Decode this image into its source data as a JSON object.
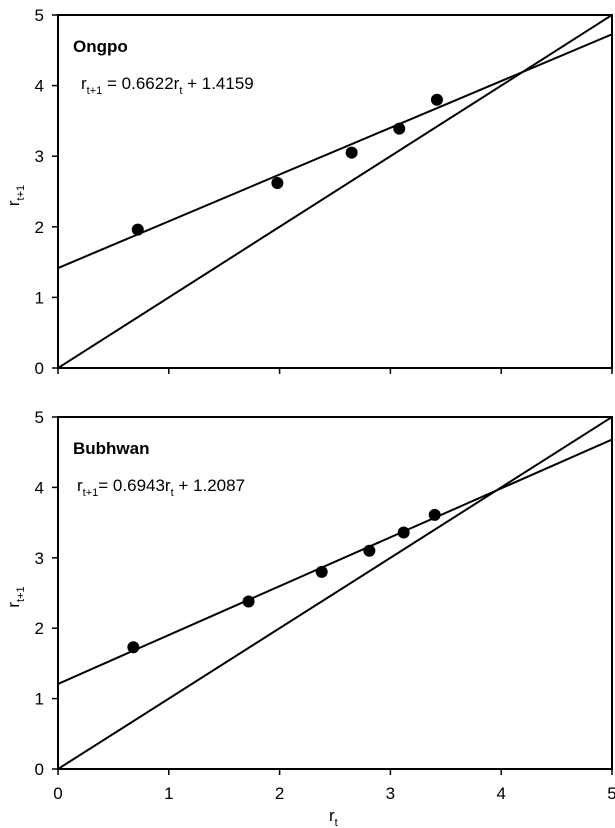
{
  "chart_data": [
    {
      "type": "scatter",
      "panel_label": "Ongpo",
      "equation": {
        "lhs": "r",
        "lhs_sub": "t+1",
        "mid": " = 0.6622r",
        "mid_sub": "t",
        "rhs": " + 1.4159"
      },
      "ylabel": {
        "main": "r",
        "sub": "t+1"
      },
      "xlim": [
        0,
        5
      ],
      "ylim": [
        0,
        5
      ],
      "xticks": [
        0,
        1,
        2,
        3,
        4,
        5
      ],
      "yticks": [
        0,
        1,
        2,
        3,
        4,
        5
      ],
      "show_x_tick_labels": false,
      "x": [
        0.72,
        1.98,
        2.65,
        3.08,
        3.42
      ],
      "y": [
        1.96,
        2.62,
        3.05,
        3.39,
        3.8
      ],
      "fit": {
        "slope": 0.6622,
        "intercept": 1.4159
      },
      "identity_line": true,
      "grid": false
    },
    {
      "type": "scatter",
      "panel_label": "Bubhwan",
      "equation": {
        "lhs": "r",
        "lhs_sub": "t+1",
        "mid": "= 0.6943r",
        "mid_sub": "t",
        "rhs": " + 1.2087"
      },
      "ylabel": {
        "main": "r",
        "sub": "t+1"
      },
      "xlabel": {
        "main": "r",
        "sub": "t"
      },
      "xlim": [
        0,
        5
      ],
      "ylim": [
        0,
        5
      ],
      "xticks": [
        0,
        1,
        2,
        3,
        4,
        5
      ],
      "yticks": [
        0,
        1,
        2,
        3,
        4,
        5
      ],
      "show_x_tick_labels": true,
      "x": [
        0.68,
        1.72,
        2.38,
        2.81,
        3.12,
        3.4
      ],
      "y": [
        1.73,
        2.38,
        2.8,
        3.1,
        3.36,
        3.61
      ],
      "fit": {
        "slope": 0.6943,
        "intercept": 1.2087
      },
      "identity_line": true,
      "grid": false
    }
  ]
}
